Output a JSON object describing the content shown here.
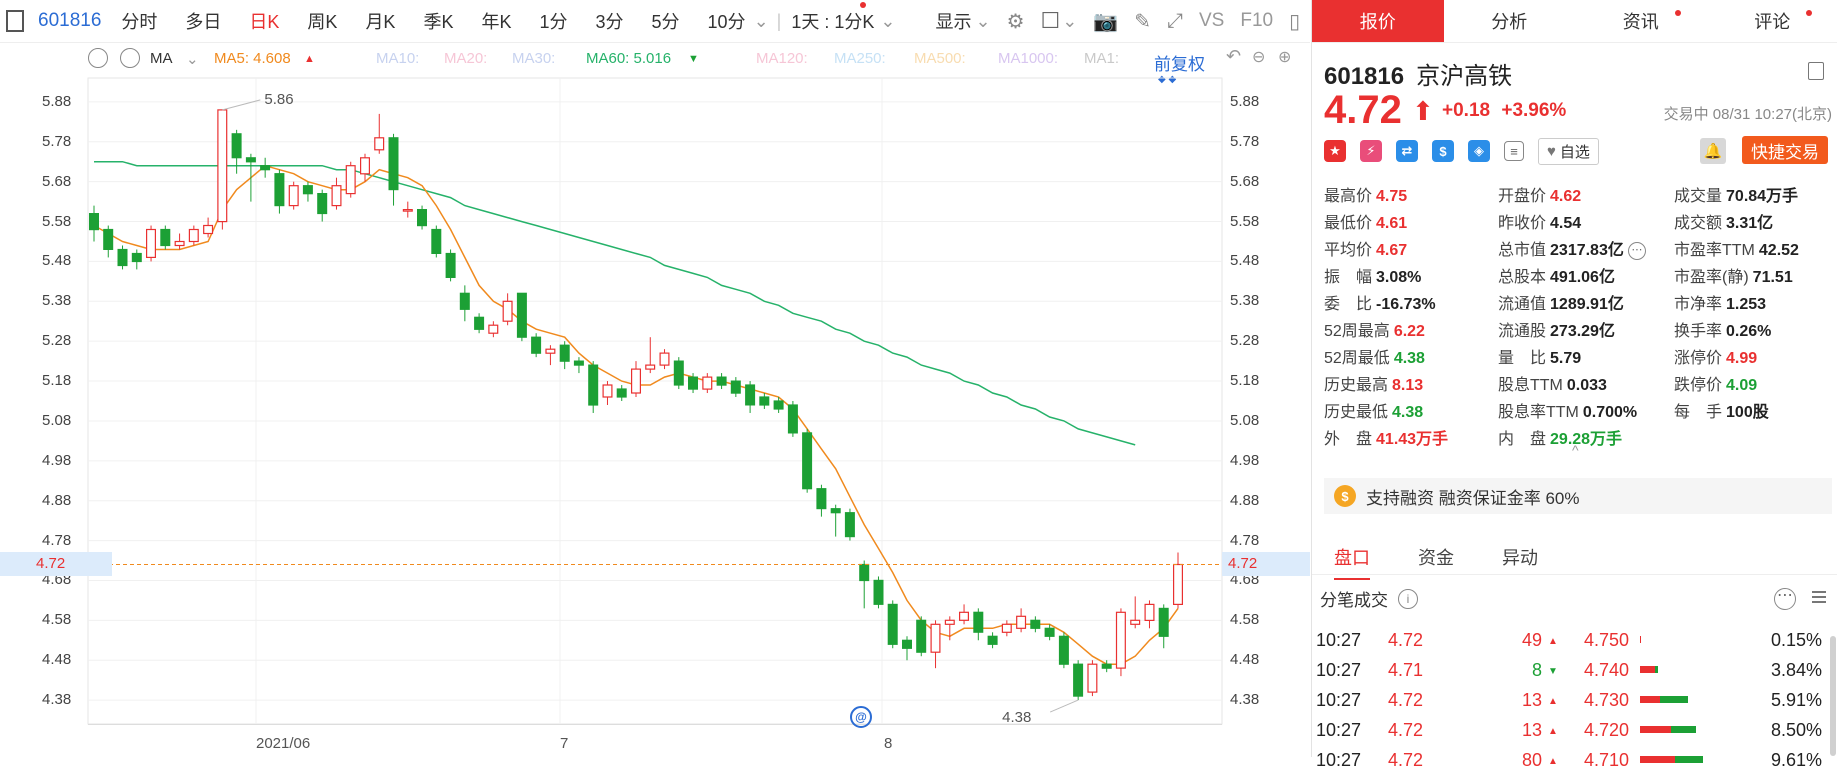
{
  "toolbar": {
    "code": "601816",
    "periods": [
      "分时",
      "多日",
      "日K",
      "周K",
      "月K",
      "季K",
      "年K",
      "1分",
      "3分",
      "5分",
      "10分"
    ],
    "active_period": "日K",
    "interval_select": "1天 : 1分K",
    "display": "显示",
    "vs": "VS",
    "f10": "F10"
  },
  "ma": {
    "label": "MA",
    "ma5": "MA5: 4.608",
    "ma10": "MA10:",
    "ma20": "MA20:",
    "ma30": "MA30:",
    "ma60": "MA60: 5.016",
    "ma120": "MA120:",
    "ma250": "MA250:",
    "ma500": "MA500:",
    "ma1000": "MA1000:",
    "ma1": "MA1:",
    "adjust": "前复权",
    "colors": {
      "ma5": "#f08a1e",
      "ma60": "#26b26a",
      "faded": "#c8c8f0"
    }
  },
  "chart_data": {
    "type": "candlestick",
    "title": "",
    "y_ticks": [
      "5.88",
      "5.78",
      "5.68",
      "5.58",
      "5.48",
      "5.38",
      "5.28",
      "5.18",
      "5.08",
      "4.98",
      "4.88",
      "4.78",
      "4.68",
      "4.58",
      "4.48",
      "4.38"
    ],
    "ylim": [
      4.32,
      5.94
    ],
    "x_labels": [
      "2021/06",
      "7",
      "8"
    ],
    "current_price": "4.72",
    "high_marker": "5.86",
    "low_marker": "4.38",
    "candles": [
      [
        5.6,
        5.56,
        5.62,
        5.53
      ],
      [
        5.56,
        5.51,
        5.57,
        5.49
      ],
      [
        5.51,
        5.47,
        5.52,
        5.46
      ],
      [
        5.5,
        5.48,
        5.51,
        5.46
      ],
      [
        5.49,
        5.56,
        5.57,
        5.48
      ],
      [
        5.56,
        5.52,
        5.57,
        5.51
      ],
      [
        5.52,
        5.53,
        5.55,
        5.51
      ],
      [
        5.53,
        5.56,
        5.57,
        5.52
      ],
      [
        5.55,
        5.57,
        5.59,
        5.54
      ],
      [
        5.58,
        5.86,
        5.86,
        5.56
      ],
      [
        5.8,
        5.74,
        5.81,
        5.7
      ],
      [
        5.74,
        5.73,
        5.75,
        5.63
      ],
      [
        5.72,
        5.71,
        5.74,
        5.69
      ],
      [
        5.7,
        5.62,
        5.71,
        5.6
      ],
      [
        5.62,
        5.67,
        5.68,
        5.61
      ],
      [
        5.67,
        5.65,
        5.68,
        5.63
      ],
      [
        5.65,
        5.6,
        5.66,
        5.58
      ],
      [
        5.62,
        5.67,
        5.69,
        5.61
      ],
      [
        5.65,
        5.72,
        5.73,
        5.64
      ],
      [
        5.7,
        5.74,
        5.75,
        5.68
      ],
      [
        5.76,
        5.79,
        5.85,
        5.75
      ],
      [
        5.79,
        5.66,
        5.8,
        5.62
      ],
      [
        5.61,
        5.61,
        5.63,
        5.59
      ],
      [
        5.61,
        5.57,
        5.62,
        5.56
      ],
      [
        5.56,
        5.5,
        5.57,
        5.49
      ],
      [
        5.5,
        5.44,
        5.51,
        5.43
      ],
      [
        5.4,
        5.36,
        5.42,
        5.33
      ],
      [
        5.34,
        5.31,
        5.35,
        5.3
      ],
      [
        5.3,
        5.32,
        5.33,
        5.29
      ],
      [
        5.33,
        5.38,
        5.4,
        5.32
      ],
      [
        5.4,
        5.29,
        5.4,
        5.28
      ],
      [
        5.29,
        5.25,
        5.3,
        5.24
      ],
      [
        5.25,
        5.26,
        5.27,
        5.22
      ],
      [
        5.27,
        5.23,
        5.28,
        5.21
      ],
      [
        5.23,
        5.22,
        5.24,
        5.2
      ],
      [
        5.22,
        5.12,
        5.23,
        5.1
      ],
      [
        5.14,
        5.17,
        5.18,
        5.12
      ],
      [
        5.16,
        5.14,
        5.17,
        5.13
      ],
      [
        5.15,
        5.21,
        5.23,
        5.14
      ],
      [
        5.21,
        5.22,
        5.29,
        5.2
      ],
      [
        5.22,
        5.25,
        5.26,
        5.21
      ],
      [
        5.23,
        5.17,
        5.24,
        5.16
      ],
      [
        5.19,
        5.16,
        5.2,
        5.15
      ],
      [
        5.16,
        5.19,
        5.2,
        5.15
      ],
      [
        5.19,
        5.17,
        5.2,
        5.16
      ],
      [
        5.18,
        5.15,
        5.19,
        5.14
      ],
      [
        5.17,
        5.12,
        5.18,
        5.1
      ],
      [
        5.14,
        5.12,
        5.15,
        5.11
      ],
      [
        5.13,
        5.11,
        5.14,
        5.1
      ],
      [
        5.12,
        5.05,
        5.13,
        5.04
      ],
      [
        5.05,
        4.91,
        5.06,
        4.9
      ],
      [
        4.91,
        4.86,
        4.92,
        4.84
      ],
      [
        4.86,
        4.85,
        4.87,
        4.79
      ],
      [
        4.85,
        4.79,
        4.86,
        4.78
      ],
      [
        4.72,
        4.68,
        4.73,
        4.61
      ],
      [
        4.68,
        4.62,
        4.69,
        4.61
      ],
      [
        4.62,
        4.52,
        4.63,
        4.51
      ],
      [
        4.53,
        4.51,
        4.54,
        4.48
      ],
      [
        4.58,
        4.5,
        4.59,
        4.49
      ],
      [
        4.5,
        4.57,
        4.58,
        4.46
      ],
      [
        4.57,
        4.58,
        4.59,
        4.53
      ],
      [
        4.58,
        4.6,
        4.62,
        4.57
      ],
      [
        4.6,
        4.55,
        4.61,
        4.53
      ],
      [
        4.54,
        4.52,
        4.55,
        4.51
      ],
      [
        4.55,
        4.57,
        4.58,
        4.54
      ],
      [
        4.56,
        4.59,
        4.61,
        4.55
      ],
      [
        4.58,
        4.56,
        4.59,
        4.55
      ],
      [
        4.56,
        4.54,
        4.57,
        4.53
      ],
      [
        4.54,
        4.47,
        4.55,
        4.46
      ],
      [
        4.47,
        4.39,
        4.48,
        4.38
      ],
      [
        4.4,
        4.47,
        4.48,
        4.39
      ],
      [
        4.47,
        4.46,
        4.48,
        4.45
      ],
      [
        4.46,
        4.6,
        4.61,
        4.44
      ],
      [
        4.57,
        4.58,
        4.64,
        4.56
      ],
      [
        4.58,
        4.62,
        4.63,
        4.56
      ],
      [
        4.61,
        4.54,
        4.62,
        4.51
      ],
      [
        4.62,
        4.72,
        4.75,
        4.61
      ]
    ],
    "ma5": [
      5.57,
      5.55,
      5.53,
      5.52,
      5.51,
      5.51,
      5.51,
      5.52,
      5.53,
      5.61,
      5.66,
      5.69,
      5.72,
      5.71,
      5.7,
      5.68,
      5.67,
      5.66,
      5.66,
      5.68,
      5.71,
      5.7,
      5.69,
      5.67,
      5.62,
      5.56,
      5.49,
      5.42,
      5.38,
      5.36,
      5.33,
      5.31,
      5.3,
      5.29,
      5.25,
      5.22,
      5.2,
      5.18,
      5.17,
      5.17,
      5.19,
      5.2,
      5.19,
      5.18,
      5.18,
      5.17,
      5.16,
      5.15,
      5.14,
      5.11,
      5.06,
      5.01,
      4.96,
      4.89,
      4.82,
      4.76,
      4.7,
      4.63,
      4.58,
      4.55,
      4.54,
      4.56,
      4.56,
      4.56,
      4.57,
      4.57,
      4.57,
      4.57,
      4.55,
      4.52,
      4.49,
      4.47,
      4.47,
      4.49,
      4.53,
      4.56,
      4.61
    ],
    "ma60": [
      5.73,
      5.73,
      5.73,
      5.72,
      5.72,
      5.72,
      5.72,
      5.72,
      5.72,
      5.72,
      5.72,
      5.72,
      5.72,
      5.72,
      5.72,
      5.72,
      5.72,
      5.71,
      5.71,
      5.7,
      5.69,
      5.68,
      5.67,
      5.66,
      5.65,
      5.64,
      5.62,
      5.61,
      5.6,
      5.59,
      5.58,
      5.57,
      5.56,
      5.55,
      5.54,
      5.53,
      5.52,
      5.51,
      5.5,
      5.49,
      5.47,
      5.46,
      5.45,
      5.44,
      5.42,
      5.41,
      5.4,
      5.38,
      5.37,
      5.35,
      5.34,
      5.33,
      5.31,
      5.3,
      5.28,
      5.27,
      5.25,
      5.24,
      5.22,
      5.21,
      5.2,
      5.18,
      5.17,
      5.15,
      5.14,
      5.12,
      5.11,
      5.09,
      5.08,
      5.06,
      5.05,
      5.04,
      5.03,
      5.02
    ]
  },
  "panel": {
    "tabs": [
      "报价",
      "分析",
      "资讯",
      "评论"
    ],
    "code": "601816",
    "name": "京沪高铁",
    "price": "4.72",
    "change": "+0.18",
    "change_pct": "+3.96%",
    "status": "交易中 08/31 10:27(北京)",
    "fav": "自选",
    "fast_trade": "快捷交易",
    "quote": [
      [
        {
          "l": "最高价",
          "v": "4.75",
          "c": "red"
        },
        {
          "l": "开盘价",
          "v": "4.62",
          "c": "red"
        },
        {
          "l": "成交量",
          "v": "70.84万手",
          "c": "dark"
        }
      ],
      [
        {
          "l": "最低价",
          "v": "4.61",
          "c": "red"
        },
        {
          "l": "昨收价",
          "v": "4.54",
          "c": "dark"
        },
        {
          "l": "成交额",
          "v": "3.31亿",
          "c": "dark"
        }
      ],
      [
        {
          "l": "平均价",
          "v": "4.67",
          "c": "red"
        },
        {
          "l": "总市值",
          "v": "2317.83亿",
          "c": "dark"
        },
        {
          "l": "市盈率TTM",
          "v": "42.52",
          "c": "dark"
        }
      ],
      [
        {
          "l": "振　幅",
          "v": "3.08%",
          "c": "dark"
        },
        {
          "l": "总股本",
          "v": "491.06亿",
          "c": "dark"
        },
        {
          "l": "市盈率(静)",
          "v": "71.51",
          "c": "dark"
        }
      ],
      [
        {
          "l": "委　比",
          "v": "-16.73%",
          "c": "dark"
        },
        {
          "l": "流通值",
          "v": "1289.91亿",
          "c": "dark"
        },
        {
          "l": "市净率",
          "v": "1.253",
          "c": "dark"
        }
      ],
      [
        {
          "l": "52周最高",
          "v": "6.22",
          "c": "red"
        },
        {
          "l": "流通股",
          "v": "273.29亿",
          "c": "dark"
        },
        {
          "l": "换手率",
          "v": "0.26%",
          "c": "dark"
        }
      ],
      [
        {
          "l": "52周最低",
          "v": "4.38",
          "c": "green"
        },
        {
          "l": "量　比",
          "v": "5.79",
          "c": "dark"
        },
        {
          "l": "涨停价",
          "v": "4.99",
          "c": "red"
        }
      ],
      [
        {
          "l": "历史最高",
          "v": "8.13",
          "c": "red"
        },
        {
          "l": "股息TTM",
          "v": "0.033",
          "c": "dark"
        },
        {
          "l": "跌停价",
          "v": "4.09",
          "c": "green"
        }
      ],
      [
        {
          "l": "历史最低",
          "v": "4.38",
          "c": "green"
        },
        {
          "l": "股息率TTM",
          "v": "0.700%",
          "c": "dark"
        },
        {
          "l": "每　手",
          "v": "100股",
          "c": "dark"
        }
      ],
      [
        {
          "l": "外　盘",
          "v": "41.43万手",
          "c": "red"
        },
        {
          "l": "内　盘",
          "v": "29.28万手",
          "c": "green"
        },
        {
          "l": "",
          "v": "",
          "c": "dark"
        }
      ]
    ],
    "margin": "支持融资 融资保证金率 60%",
    "sub_tabs": [
      "盘口",
      "资金",
      "异动"
    ],
    "ticks_title": "分笔成交",
    "ticks": [
      {
        "time": "10:27",
        "price": "4.72",
        "vol": "49",
        "dir": "up",
        "level": "4.750",
        "pct": "0.15%",
        "red": 0.02,
        "green": 0.0
      },
      {
        "time": "10:27",
        "price": "4.71",
        "vol": "8",
        "dir": "down",
        "level": "4.740",
        "pct": "3.84%",
        "red": 0.22,
        "green": 0.04
      },
      {
        "time": "10:27",
        "price": "4.72",
        "vol": "13",
        "dir": "up",
        "level": "4.730",
        "pct": "5.91%",
        "red": 0.28,
        "green": 0.4
      },
      {
        "time": "10:27",
        "price": "4.72",
        "vol": "13",
        "dir": "up",
        "level": "4.720",
        "pct": "8.50%",
        "red": 0.44,
        "green": 0.36
      },
      {
        "time": "10:27",
        "price": "4.72",
        "vol": "80",
        "dir": "up",
        "level": "4.710",
        "pct": "9.61%",
        "red": 0.5,
        "green": 0.4
      }
    ]
  }
}
